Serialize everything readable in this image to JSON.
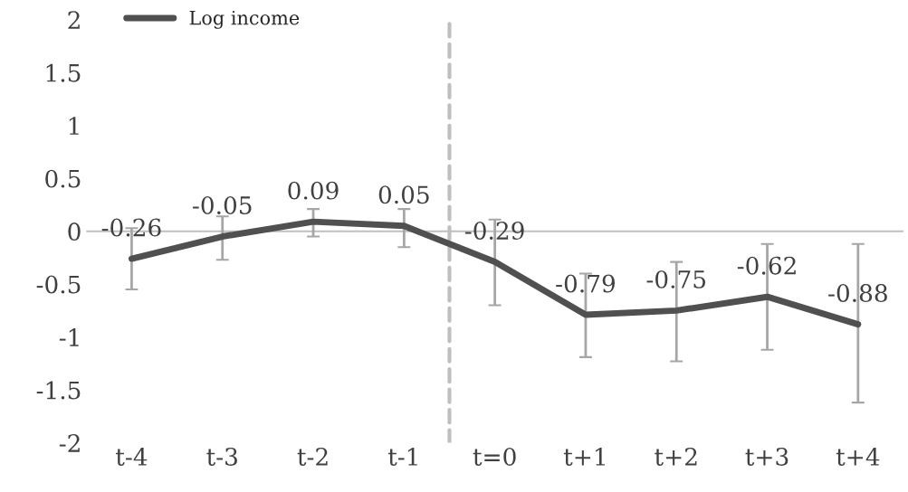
{
  "chart_data": {
    "type": "line",
    "categories": [
      "t-4",
      "t-3",
      "t-2",
      "t-1",
      "t=0",
      "t+1",
      "t+2",
      "t+3",
      "t+4"
    ],
    "series": [
      {
        "name": "Log income",
        "color": "#505050",
        "values": [
          -0.26,
          -0.05,
          0.09,
          0.05,
          -0.29,
          -0.79,
          -0.75,
          -0.62,
          -0.88
        ],
        "errors": [
          [
            -0.55,
            0.03
          ],
          [
            -0.27,
            0.14
          ],
          [
            -0.05,
            0.21
          ],
          [
            -0.15,
            0.21
          ],
          [
            -0.7,
            0.11
          ],
          [
            -1.19,
            -0.4
          ],
          [
            -1.23,
            -0.29
          ],
          [
            -1.12,
            -0.12
          ],
          [
            -1.62,
            -0.12
          ]
        ]
      }
    ],
    "ylim": [
      -2,
      2
    ],
    "yticks": [
      -2,
      -1.5,
      -1,
      -0.5,
      0,
      0.5,
      1,
      1.5,
      2
    ],
    "data_labels": true,
    "legend": "top left",
    "marker": "none",
    "line_style": "solid"
  }
}
